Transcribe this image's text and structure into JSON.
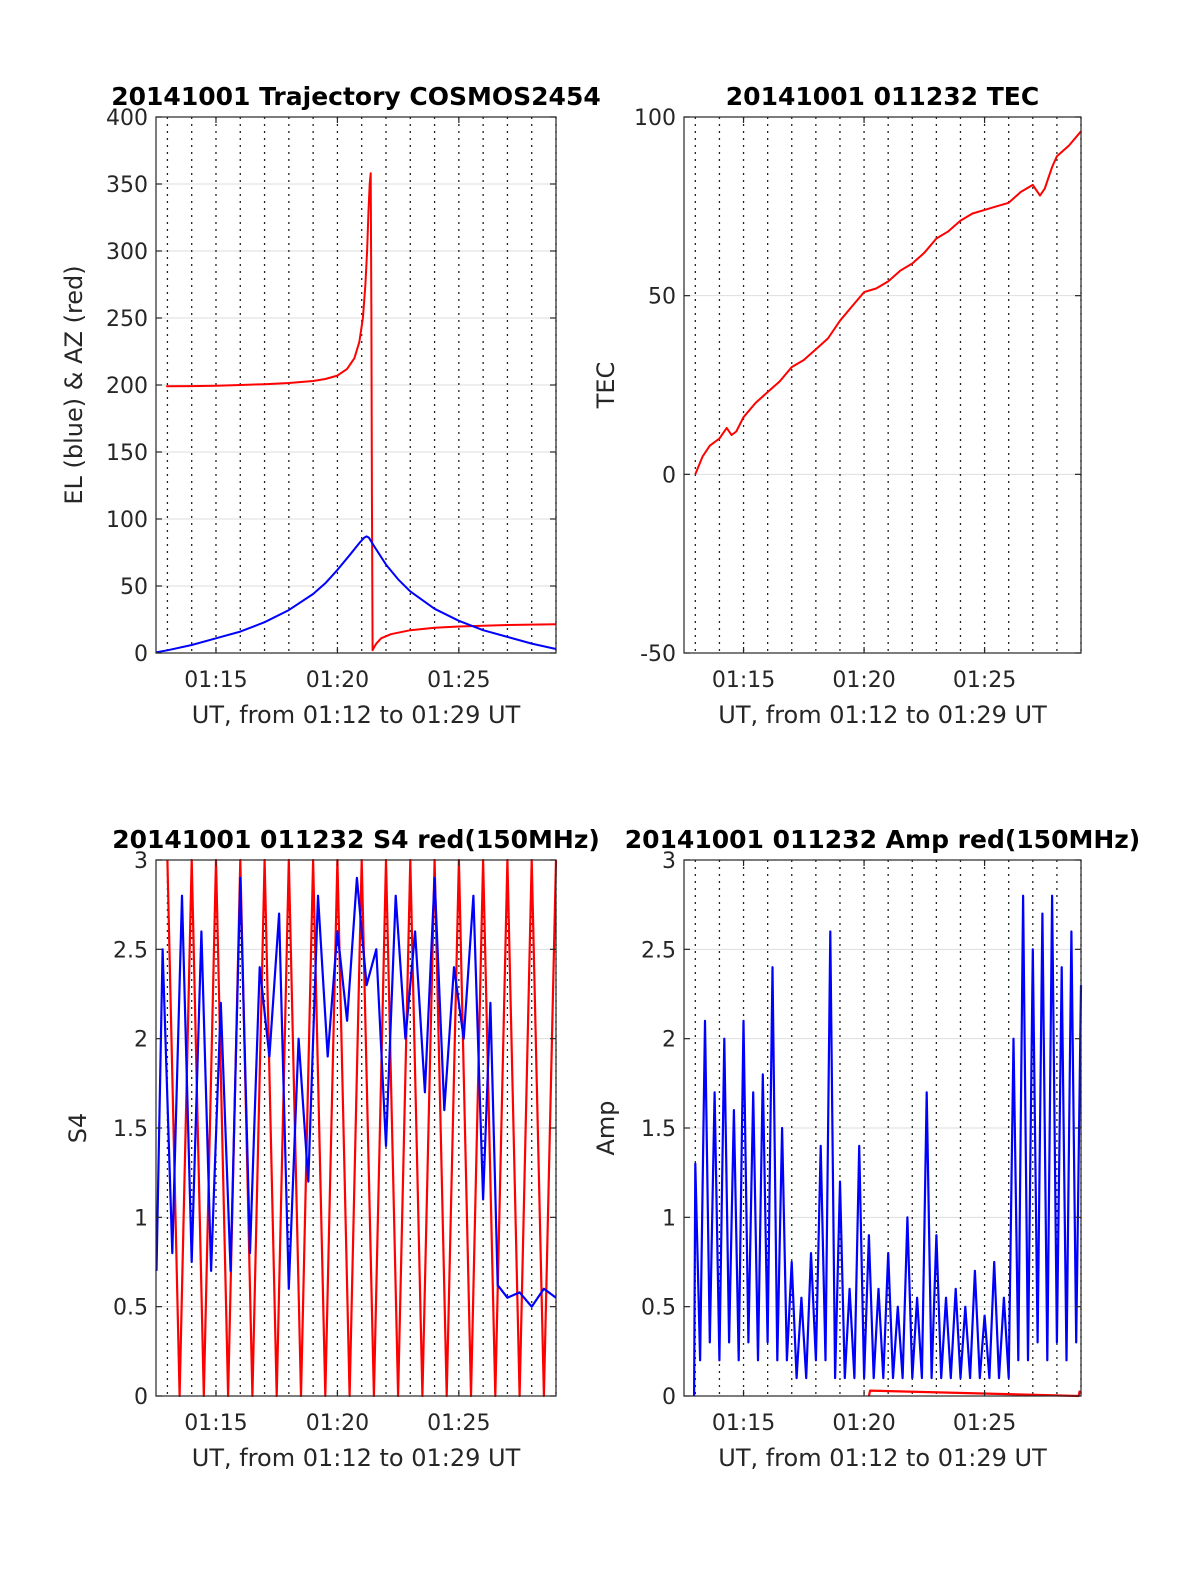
{
  "chart_data": [
    {
      "type": "line",
      "title": "20141001 Trajectory COSMOS2454",
      "xlabel": "UT, from 01:12 to 01:29 UT",
      "ylabel": "EL (blue) & AZ (red)",
      "x_unit": "minutes past 01:00 UT",
      "xlim": [
        12.53,
        29.0
      ],
      "ylim": [
        0,
        400
      ],
      "yticks": [
        0,
        50,
        100,
        150,
        200,
        250,
        300,
        350,
        400
      ],
      "xticks": [
        {
          "value": 15,
          "label": "01:15"
        },
        {
          "value": 20,
          "label": "01:20"
        },
        {
          "value": 25,
          "label": "01:25"
        }
      ],
      "grid": true,
      "series": [
        {
          "color": "#ff0000",
          "x": [
            12.95,
            14,
            15,
            16,
            17,
            18,
            19,
            19.5,
            20,
            20.4,
            20.7,
            20.9,
            21.05,
            21.15,
            21.22,
            21.28,
            21.33,
            21.37,
            21.4,
            21.42,
            21.45,
            21.5,
            21.6,
            21.8,
            22.2,
            23,
            24,
            25,
            26,
            27,
            28,
            29
          ],
          "y": [
            199,
            199.2,
            199.5,
            200,
            200.6,
            201.5,
            203,
            204.5,
            207,
            212,
            220,
            232,
            250,
            275,
            300,
            330,
            350,
            358,
            250,
            120,
            2,
            4,
            7,
            11,
            14,
            17,
            18.8,
            19.8,
            20.4,
            20.9,
            21.2,
            21.5
          ]
        },
        {
          "color": "#0000ff",
          "x": [
            12.53,
            13,
            14,
            15,
            16,
            17,
            18,
            19,
            19.5,
            20,
            20.5,
            20.9,
            21.1,
            21.2,
            21.3,
            21.5,
            22,
            22.5,
            23,
            24,
            25,
            26,
            27,
            28,
            29
          ],
          "y": [
            0.5,
            2,
            6,
            11,
            16,
            23,
            32,
            44,
            52,
            62,
            73,
            82,
            86,
            87,
            86,
            80,
            66,
            55,
            46,
            33,
            24,
            17,
            12,
            7,
            3
          ]
        }
      ]
    },
    {
      "type": "line",
      "title": "20141001 011232 TEC",
      "xlabel": "UT, from 01:12 to 01:29 UT",
      "ylabel": "TEC",
      "x_unit": "minutes past 01:00 UT",
      "xlim": [
        12.53,
        29.0
      ],
      "ylim": [
        -50,
        100
      ],
      "yticks": [
        -50,
        0,
        50,
        100
      ],
      "xticks": [
        {
          "value": 15,
          "label": "01:15"
        },
        {
          "value": 20,
          "label": "01:20"
        },
        {
          "value": 25,
          "label": "01:25"
        }
      ],
      "grid": true,
      "series": [
        {
          "color": "#ff0000",
          "x": [
            13.0,
            13.3,
            13.6,
            14.0,
            14.3,
            14.5,
            14.7,
            15.0,
            15.5,
            16.0,
            16.5,
            17.0,
            17.5,
            18.0,
            18.5,
            19.0,
            19.5,
            20.0,
            20.5,
            21.0,
            21.5,
            22.0,
            22.5,
            23.0,
            23.5,
            24.0,
            24.5,
            25.0,
            25.5,
            26.0,
            26.5,
            27.0,
            27.3,
            27.5,
            27.8,
            28.0,
            28.5,
            29.0
          ],
          "y": [
            0,
            5,
            8,
            10,
            13,
            11,
            12,
            16,
            20,
            23,
            26,
            30,
            32,
            35,
            38,
            43,
            47,
            51,
            52,
            54,
            57,
            59,
            62,
            66,
            68,
            71,
            73,
            74,
            75,
            76,
            79,
            81,
            78,
            80,
            86,
            89,
            92,
            96
          ]
        }
      ]
    },
    {
      "type": "line",
      "title": "20141001 011232 S4 red(150MHz)",
      "xlabel": "UT, from 01:12 to 01:29 UT",
      "ylabel": "S4",
      "x_unit": "minutes past 01:00 UT",
      "xlim": [
        12.53,
        29.0
      ],
      "ylim": [
        0,
        3
      ],
      "yticks": [
        0,
        0.5,
        1,
        1.5,
        2,
        2.5,
        3
      ],
      "yticklabels": [
        "0",
        "0.5",
        "1",
        "1.5",
        "2",
        "2.5",
        "3"
      ],
      "xticks": [
        {
          "value": 15,
          "label": "01:15"
        },
        {
          "value": 20,
          "label": "01:20"
        },
        {
          "value": 25,
          "label": "01:25"
        }
      ],
      "grid": true,
      "series": [
        {
          "color": "#ff0000",
          "x": [
            13.0,
            13.5,
            14.0,
            14.5,
            15.0,
            15.5,
            16.0,
            16.5,
            17.0,
            17.5,
            18.0,
            18.5,
            19.0,
            19.5,
            20.0,
            20.5,
            21.0,
            21.5,
            22.0,
            22.5,
            23.0,
            23.5,
            24.0,
            24.5,
            25.0,
            25.5,
            26.0,
            26.5,
            27.0,
            27.5,
            28.0,
            28.5,
            29.0
          ],
          "y": [
            3,
            0,
            3,
            0,
            3,
            0,
            3,
            0,
            3,
            0,
            3,
            0,
            3,
            0,
            3,
            0,
            3,
            0,
            3,
            0,
            3,
            0,
            3,
            0,
            3,
            0,
            3,
            0,
            3,
            0,
            3,
            0,
            3
          ]
        },
        {
          "color": "#0000ff",
          "x": [
            12.55,
            12.8,
            13.2,
            13.6,
            14.0,
            14.4,
            14.8,
            15.2,
            15.6,
            16.0,
            16.4,
            16.8,
            17.2,
            17.6,
            18.0,
            18.4,
            18.8,
            19.2,
            19.6,
            20.0,
            20.4,
            20.8,
            21.2,
            21.6,
            22.0,
            22.4,
            22.8,
            23.2,
            23.6,
            24.0,
            24.4,
            24.8,
            25.2,
            25.6,
            26.0,
            26.3,
            26.6,
            27.0,
            27.5,
            28.0,
            28.5,
            29.0
          ],
          "y": [
            0.7,
            2.5,
            0.8,
            2.8,
            0.75,
            2.6,
            0.7,
            2.2,
            0.7,
            2.9,
            0.8,
            2.4,
            1.9,
            2.7,
            0.6,
            2.0,
            1.2,
            2.8,
            1.9,
            2.6,
            2.1,
            2.9,
            2.3,
            2.5,
            1.4,
            2.8,
            2.0,
            2.6,
            1.7,
            2.9,
            1.6,
            2.4,
            2.0,
            2.8,
            1.1,
            2.2,
            0.62,
            0.55,
            0.58,
            0.5,
            0.6,
            0.55
          ]
        }
      ]
    },
    {
      "type": "line",
      "title": "20141001 011232 Amp red(150MHz)",
      "xlabel": "UT, from 01:12 to 01:29 UT",
      "ylabel": "Amp",
      "x_unit": "minutes past 01:00 UT",
      "xlim": [
        12.53,
        29.0
      ],
      "ylim": [
        0,
        3
      ],
      "yticks": [
        0,
        0.5,
        1,
        1.5,
        2,
        2.5,
        3
      ],
      "yticklabels": [
        "0",
        "0.5",
        "1",
        "1.5",
        "2",
        "2.5",
        "3"
      ],
      "xticks": [
        {
          "value": 15,
          "label": "01:15"
        },
        {
          "value": 20,
          "label": "01:20"
        },
        {
          "value": 25,
          "label": "01:25"
        }
      ],
      "grid": true,
      "series": [
        {
          "color": "#0000ff",
          "x": [
            12.95,
            13.0,
            13.2,
            13.4,
            13.6,
            13.8,
            14.0,
            14.2,
            14.4,
            14.6,
            14.8,
            15.0,
            15.2,
            15.4,
            15.6,
            15.8,
            16.0,
            16.2,
            16.4,
            16.6,
            16.8,
            17.0,
            17.2,
            17.4,
            17.6,
            17.8,
            18.0,
            18.2,
            18.4,
            18.6,
            18.8,
            19.0,
            19.2,
            19.4,
            19.6,
            19.8,
            20.0,
            20.2,
            20.4,
            20.6,
            20.8,
            21.0,
            21.2,
            21.4,
            21.6,
            21.8,
            22.0,
            22.2,
            22.4,
            22.6,
            22.8,
            23.0,
            23.2,
            23.4,
            23.6,
            23.8,
            24.0,
            24.2,
            24.4,
            24.6,
            24.8,
            25.0,
            25.2,
            25.4,
            25.6,
            25.8,
            26.0,
            26.2,
            26.4,
            26.6,
            26.8,
            27.0,
            27.2,
            27.4,
            27.6,
            27.8,
            28.0,
            28.2,
            28.4,
            28.6,
            28.8,
            29.0
          ],
          "y": [
            0,
            1.3,
            0.2,
            2.1,
            0.3,
            1.7,
            0.2,
            2.0,
            0.3,
            1.6,
            0.2,
            2.1,
            0.3,
            1.7,
            0.2,
            1.8,
            0.3,
            2.4,
            0.2,
            1.5,
            0.2,
            0.75,
            0.1,
            0.55,
            0.1,
            0.8,
            0.2,
            1.4,
            0.2,
            2.6,
            0.1,
            1.2,
            0.1,
            0.6,
            0.1,
            1.4,
            0.1,
            0.9,
            0.1,
            0.6,
            0.1,
            0.8,
            0.1,
            0.5,
            0.1,
            1.0,
            0.1,
            0.55,
            0.1,
            1.7,
            0.1,
            0.9,
            0.1,
            0.55,
            0.1,
            0.6,
            0.1,
            0.5,
            0.1,
            0.7,
            0.1,
            0.45,
            0.1,
            0.75,
            0.1,
            0.55,
            0.1,
            2.0,
            0.2,
            2.8,
            0.2,
            2.5,
            0.3,
            2.7,
            0.2,
            2.8,
            0.3,
            2.4,
            0.2,
            2.6,
            0.3,
            2.3
          ]
        },
        {
          "color": "#ff0000",
          "x": [
            20.2,
            20.25,
            28.9,
            28.95
          ],
          "y": [
            0,
            0.03,
            0,
            0.03
          ]
        }
      ]
    }
  ]
}
